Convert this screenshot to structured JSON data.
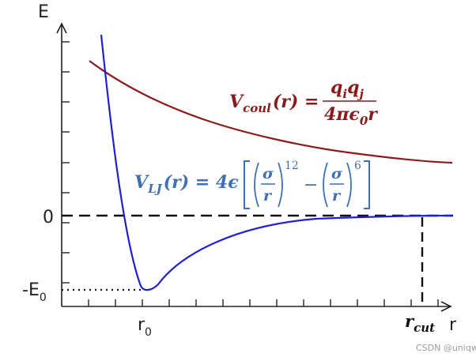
{
  "axes": {
    "y_label": "E",
    "x_label": "r"
  },
  "ticks": {
    "zero": "0",
    "e0_main": "-E",
    "e0_sub": "0",
    "r0_main": "r",
    "r0_sub": "0",
    "rcut_main": "r",
    "rcut_sub": "cut"
  },
  "coulomb": {
    "lhs_v": "V",
    "lhs_sub": "coul",
    "lhs_arg": "(r) =",
    "num_q1": "q",
    "num_i": "i",
    "num_q2": "q",
    "num_j": "j",
    "den_main": "4πϵ",
    "den_sub": "0",
    "den_r": "r"
  },
  "lj": {
    "lhs_v": "V",
    "lhs_sub": "LJ",
    "lhs_arg": "(r) = 4ϵ",
    "sigma": "σ",
    "r": "r",
    "minus": "−",
    "exp12": "12",
    "exp6": "6"
  },
  "watermark": "CSDN @uniqw",
  "colors": {
    "coulomb": "#8B1A1A",
    "lj_curve": "#1F1FD6",
    "lj_text": "#3F6FB5",
    "axis": "#222222"
  }
}
